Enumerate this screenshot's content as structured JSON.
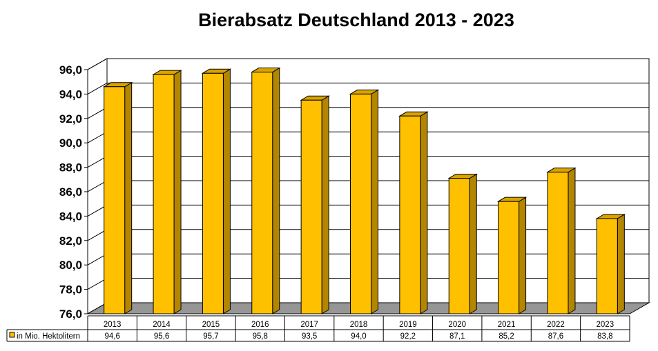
{
  "chart_data": {
    "type": "bar",
    "title": "Bierabsatz Deutschland 2013 - 2023",
    "categories": [
      "2013",
      "2014",
      "2015",
      "2016",
      "2017",
      "2018",
      "2019",
      "2020",
      "2021",
      "2022",
      "2023"
    ],
    "series": [
      {
        "name": "in Mio. Hektolitern",
        "values": [
          94.6,
          95.6,
          95.7,
          95.8,
          93.5,
          94.0,
          92.2,
          87.1,
          85.2,
          87.6,
          83.8
        ],
        "labels": [
          "94,6",
          "95,6",
          "95,7",
          "95,8",
          "93,5",
          "94,0",
          "92,2",
          "87,1",
          "85,2",
          "87,6",
          "83,8"
        ],
        "color": "#FFC000"
      }
    ],
    "ylim": [
      76,
      96
    ],
    "yticks": [
      "76,0",
      "78,0",
      "80,0",
      "82,0",
      "84,0",
      "86,0",
      "88,0",
      "90,0",
      "92,0",
      "94,0",
      "96,0"
    ],
    "ytick_values": [
      76,
      78,
      80,
      82,
      84,
      86,
      88,
      90,
      92,
      94,
      96
    ],
    "grid": true,
    "legend": "data-table",
    "floor_color": "#969696",
    "bar_side_color": "#B38600",
    "bar_top_color": "#D9A300"
  }
}
